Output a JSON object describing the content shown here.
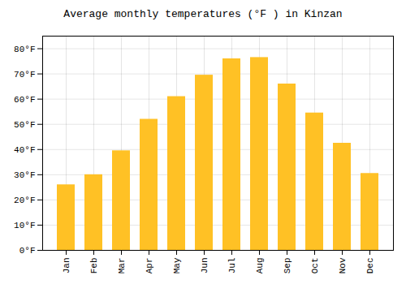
{
  "chart_data": {
    "type": "bar",
    "title": "Average monthly temperatures (°F ) in Kinzan",
    "categories": [
      "Jan",
      "Feb",
      "Mar",
      "Apr",
      "May",
      "Jun",
      "Jul",
      "Aug",
      "Sep",
      "Oct",
      "Nov",
      "Dec"
    ],
    "values": [
      26,
      30,
      39.5,
      52,
      61,
      69.5,
      76,
      76.5,
      66,
      54.5,
      42.5,
      30.5
    ],
    "color": "#FFC125",
    "ylim": [
      0,
      85
    ],
    "yticks": [
      {
        "value": 0,
        "label": "0°F"
      },
      {
        "value": 10,
        "label": "10°F"
      },
      {
        "value": 20,
        "label": "20°F"
      },
      {
        "value": 30,
        "label": "30°F"
      },
      {
        "value": 40,
        "label": "40°F"
      },
      {
        "value": 50,
        "label": "50°F"
      },
      {
        "value": 60,
        "label": "60°F"
      },
      {
        "value": 70,
        "label": "70°F"
      },
      {
        "value": 80,
        "label": "80°F"
      }
    ],
    "grid": true
  }
}
